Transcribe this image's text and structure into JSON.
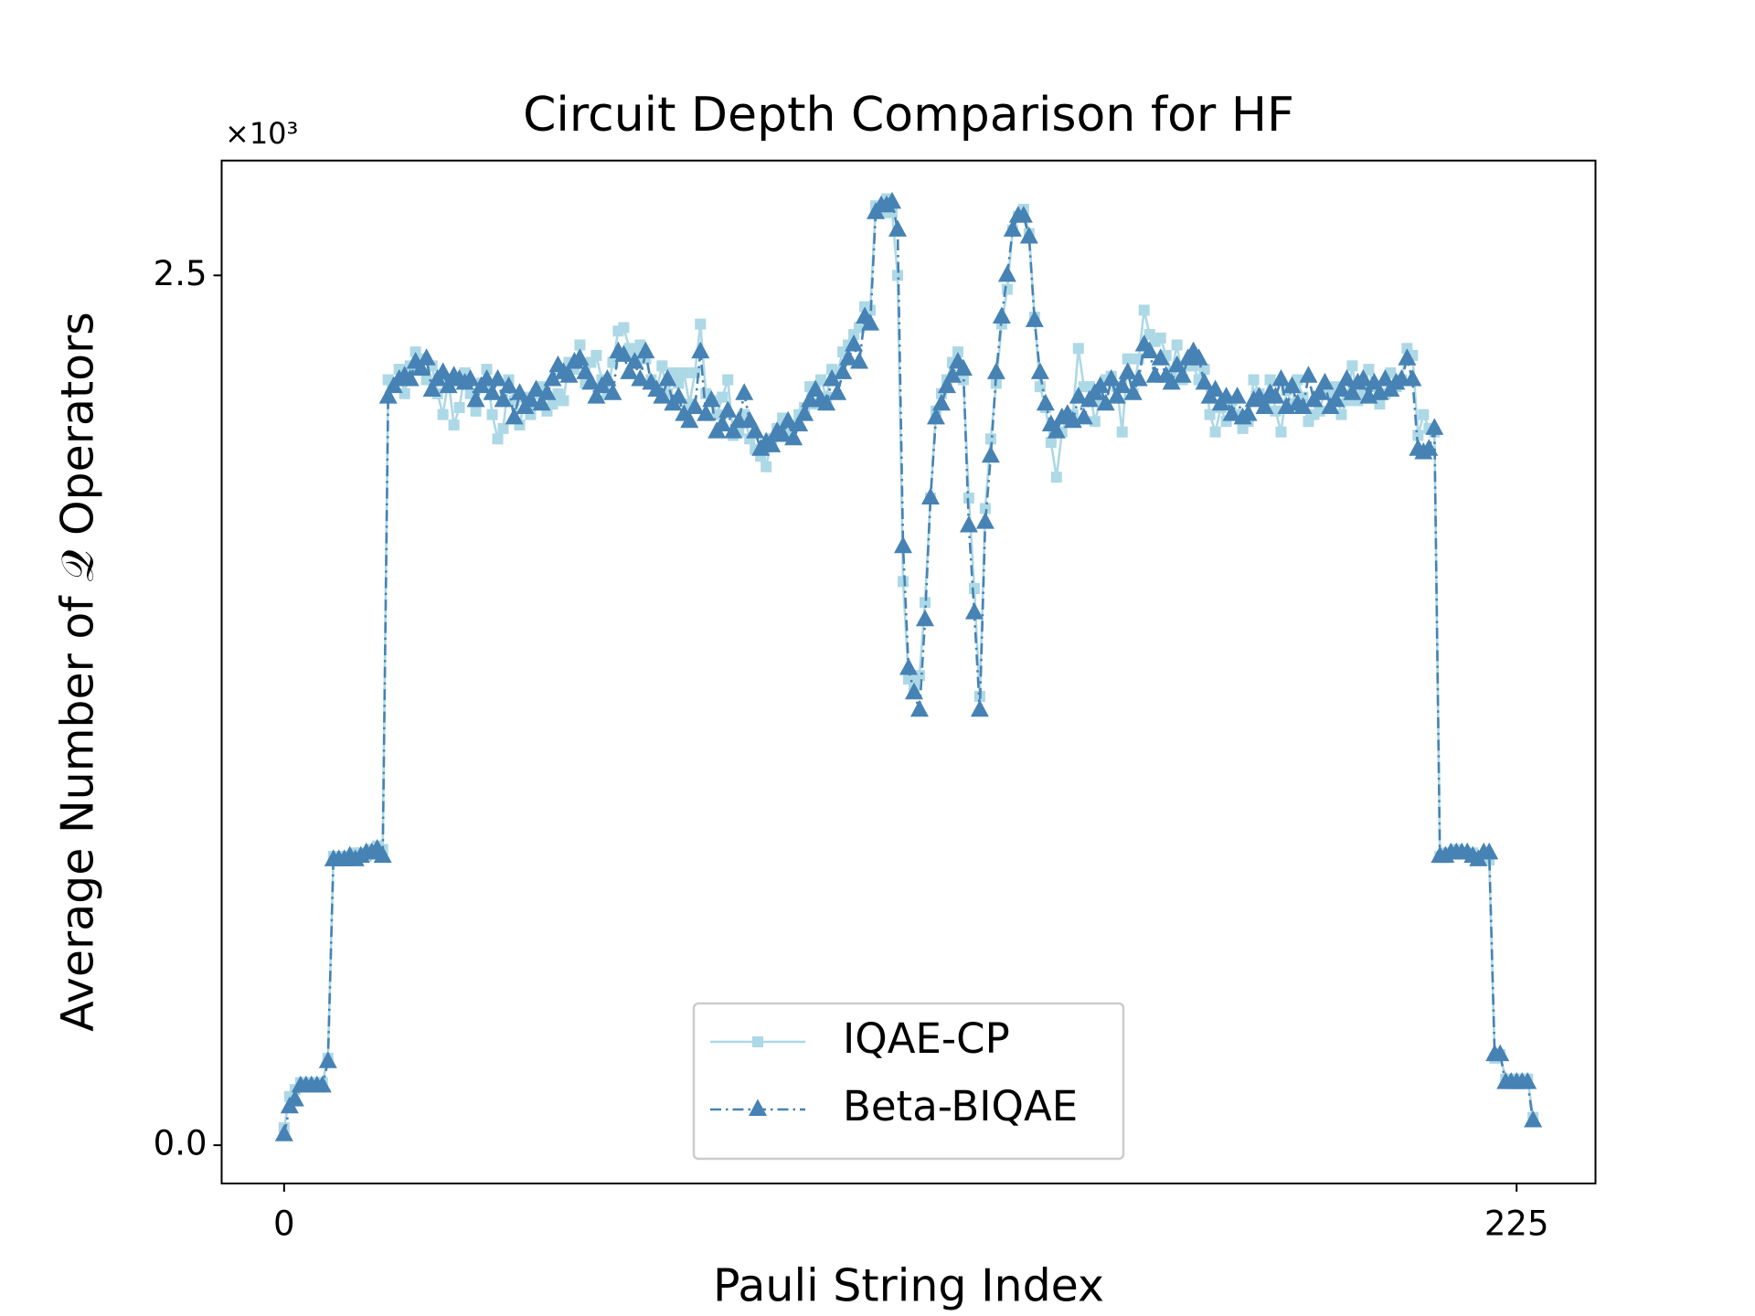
{
  "chart_data": {
    "type": "line",
    "title": "Circuit Depth Comparison for HF",
    "x_label": "Pauli String Index",
    "y_label": "Average Number of 𝒬 Operators",
    "y_offset_label": "×10³",
    "xlim": [
      -11.4,
      239.4
    ],
    "ylim": [
      -0.11,
      2.83
    ],
    "xticks": [
      0,
      225
    ],
    "yticks": [
      {
        "value": 0,
        "label": "0.0"
      },
      {
        "value": 2.5,
        "label": "2.5"
      }
    ],
    "legend": "lower center",
    "x": [
      0,
      1,
      2,
      3,
      4,
      5,
      6,
      7,
      8,
      9,
      10,
      11,
      12,
      13,
      14,
      15,
      16,
      17,
      18,
      19,
      20,
      21,
      22,
      23,
      24,
      25,
      26,
      27,
      28,
      29,
      30,
      31,
      32,
      33,
      34,
      35,
      36,
      37,
      38,
      39,
      40,
      41,
      42,
      43,
      44,
      45,
      46,
      47,
      48,
      49,
      50,
      51,
      52,
      53,
      54,
      55,
      56,
      57,
      58,
      59,
      60,
      61,
      62,
      63,
      64,
      65,
      66,
      67,
      68,
      69,
      70,
      71,
      72,
      73,
      74,
      75,
      76,
      77,
      78,
      79,
      80,
      81,
      82,
      83,
      84,
      85,
      86,
      87,
      88,
      89,
      90,
      91,
      92,
      93,
      94,
      95,
      96,
      97,
      98,
      99,
      100,
      101,
      102,
      103,
      104,
      105,
      106,
      107,
      108,
      109,
      110,
      111,
      112,
      113,
      114,
      115,
      116,
      117,
      118,
      119,
      120,
      121,
      122,
      123,
      124,
      125,
      126,
      127,
      128,
      129,
      130,
      131,
      132,
      133,
      134,
      135,
      136,
      137,
      138,
      139,
      140,
      141,
      142,
      143,
      144,
      145,
      146,
      147,
      148,
      149,
      150,
      151,
      152,
      153,
      154,
      155,
      156,
      157,
      158,
      159,
      160,
      161,
      162,
      163,
      164,
      165,
      166,
      167,
      168,
      169,
      170,
      171,
      172,
      173,
      174,
      175,
      176,
      177,
      178,
      179,
      180,
      181,
      182,
      183,
      184,
      185,
      186,
      187,
      188,
      189,
      190,
      191,
      192,
      193,
      194,
      195,
      196,
      197,
      198,
      199,
      200,
      201,
      202,
      203,
      204,
      205,
      206,
      207,
      208,
      209,
      210,
      211,
      212,
      213,
      214,
      215,
      216,
      217,
      218,
      219,
      220,
      221,
      222,
      223,
      224,
      225,
      226,
      227,
      228
    ],
    "series": [
      {
        "name": "IQAE-CP",
        "color": "#add8e6",
        "marker": "square",
        "linestyle": "solid",
        "values": [
          0.05,
          0.14,
          0.16,
          0.18,
          0.18,
          0.18,
          0.18,
          0.18,
          0.25,
          0.83,
          0.82,
          0.83,
          0.82,
          0.84,
          0.84,
          0.83,
          0.85,
          0.86,
          0.85,
          2.2,
          2.19,
          2.23,
          2.16,
          2.24,
          2.28,
          2.26,
          2.2,
          2.24,
          2.16,
          2.1,
          2.2,
          2.07,
          2.12,
          2.22,
          2.16,
          2.11,
          2.19,
          2.23,
          2.1,
          2.03,
          2.06,
          2.2,
          2.14,
          2.07,
          2.15,
          2.1,
          2.16,
          2.18,
          2.11,
          2.13,
          2.16,
          2.14,
          2.25,
          2.23,
          2.3,
          2.19,
          2.25,
          2.27,
          2.2,
          2.16,
          2.25,
          2.34,
          2.35,
          2.29,
          2.27,
          2.3,
          2.26,
          2.2,
          2.17,
          2.24,
          2.16,
          2.22,
          2.19,
          2.22,
          2.13,
          2.22,
          2.36,
          2.16,
          2.14,
          2.1,
          2.15,
          2.2,
          2.04,
          2.05,
          2.1,
          2.03,
          2.0,
          1.98,
          1.95,
          2.03,
          2.06,
          2.09,
          2.05,
          2.07,
          2.1,
          2.12,
          2.18,
          2.13,
          2.2,
          2.15,
          2.23,
          2.22,
          2.28,
          2.3,
          2.33,
          2.35,
          2.41,
          2.4,
          2.7,
          2.68,
          2.72,
          2.68,
          2.5,
          1.62,
          1.34,
          1.32,
          1.35,
          1.56,
          1.86,
          2.11,
          2.16,
          2.2,
          2.25,
          2.28,
          2.2,
          1.86,
          1.6,
          1.29,
          1.83,
          2.03,
          2.19,
          2.36,
          2.46,
          2.63,
          2.67,
          2.69,
          2.62,
          2.38,
          2.18,
          2.12,
          2.02,
          1.92,
          2.05,
          2.09,
          2.1,
          2.29,
          2.18,
          2.18,
          2.08,
          2.14,
          2.2,
          2.21,
          2.18,
          2.05,
          2.26,
          2.16,
          2.26,
          2.4,
          2.33,
          2.31,
          2.32,
          2.27,
          2.22,
          2.3,
          2.2,
          2.24,
          2.24,
          2.2,
          2.23,
          2.1,
          2.05,
          2.12,
          2.08,
          2.14,
          2.1,
          2.06,
          2.08,
          2.2,
          2.16,
          2.14,
          2.2,
          2.11,
          2.05,
          2.17,
          2.13,
          2.2,
          2.15,
          2.08,
          2.1,
          2.11,
          2.17,
          2.16,
          2.18,
          2.1,
          2.14,
          2.24,
          2.14,
          2.16,
          2.23,
          2.18,
          2.13,
          2.16,
          2.22,
          2.18,
          2.2,
          2.29,
          2.27,
          2.04,
          2.1,
          2.06,
          2.05,
          0.83,
          0.84,
          0.84,
          0.85,
          0.84,
          0.84,
          0.84,
          0.83,
          0.82,
          0.82,
          0.25,
          0.26,
          0.19,
          0.19,
          0.19,
          0.19,
          0.19,
          0.08
        ]
      },
      {
        "name": "Beta-BIQAE",
        "color": "#4682b4",
        "marker": "triangle",
        "linestyle": "dashdot",
        "values": [
          0.03,
          0.11,
          0.13,
          0.17,
          0.17,
          0.17,
          0.17,
          0.17,
          0.24,
          0.82,
          0.82,
          0.82,
          0.83,
          0.82,
          0.83,
          0.84,
          0.84,
          0.85,
          0.83,
          2.15,
          2.18,
          2.2,
          2.21,
          2.2,
          2.25,
          2.23,
          2.26,
          2.17,
          2.2,
          2.22,
          2.18,
          2.21,
          2.2,
          2.19,
          2.2,
          2.14,
          2.18,
          2.2,
          2.16,
          2.2,
          2.14,
          2.18,
          2.09,
          2.16,
          2.12,
          2.14,
          2.17,
          2.13,
          2.16,
          2.2,
          2.24,
          2.22,
          2.21,
          2.25,
          2.26,
          2.22,
          2.19,
          2.15,
          2.18,
          2.2,
          2.16,
          2.28,
          2.27,
          2.22,
          2.25,
          2.2,
          2.28,
          2.19,
          2.17,
          2.15,
          2.2,
          2.13,
          2.15,
          2.1,
          2.08,
          2.12,
          2.28,
          2.1,
          2.14,
          2.05,
          2.07,
          2.11,
          2.05,
          2.08,
          2.16,
          2.08,
          2.05,
          2.0,
          2.02,
          2.01,
          2.05,
          2.04,
          2.08,
          2.03,
          2.07,
          2.1,
          2.14,
          2.17,
          2.14,
          2.13,
          2.2,
          2.16,
          2.22,
          2.26,
          2.3,
          2.25,
          2.38,
          2.36,
          2.68,
          2.7,
          2.7,
          2.71,
          2.63,
          1.72,
          1.37,
          1.3,
          1.25,
          1.51,
          1.86,
          2.09,
          2.13,
          2.18,
          2.21,
          2.25,
          2.23,
          1.78,
          1.53,
          1.25,
          1.79,
          1.98,
          2.22,
          2.38,
          2.5,
          2.63,
          2.67,
          2.67,
          2.61,
          2.37,
          2.22,
          2.13,
          2.07,
          2.05,
          2.09,
          2.1,
          2.08,
          2.15,
          2.09,
          2.14,
          2.16,
          2.18,
          2.13,
          2.2,
          2.15,
          2.18,
          2.22,
          2.16,
          2.2,
          2.3,
          2.28,
          2.21,
          2.26,
          2.21,
          2.19,
          2.24,
          2.21,
          2.26,
          2.28,
          2.26,
          2.19,
          2.15,
          2.17,
          2.13,
          2.15,
          2.1,
          2.15,
          2.09,
          2.1,
          2.14,
          2.15,
          2.12,
          2.16,
          2.15,
          2.2,
          2.12,
          2.18,
          2.13,
          2.12,
          2.21,
          2.14,
          2.16,
          2.19,
          2.12,
          2.14,
          2.17,
          2.2,
          2.16,
          2.19,
          2.2,
          2.15,
          2.19,
          2.16,
          2.2,
          2.17,
          2.19,
          2.2,
          2.26,
          2.2,
          2.0,
          1.99,
          2.0,
          2.06,
          0.83,
          0.83,
          0.84,
          0.84,
          0.84,
          0.84,
          0.83,
          0.82,
          0.84,
          0.84,
          0.26,
          0.26,
          0.18,
          0.18,
          0.18,
          0.18,
          0.18,
          0.07
        ]
      }
    ]
  }
}
